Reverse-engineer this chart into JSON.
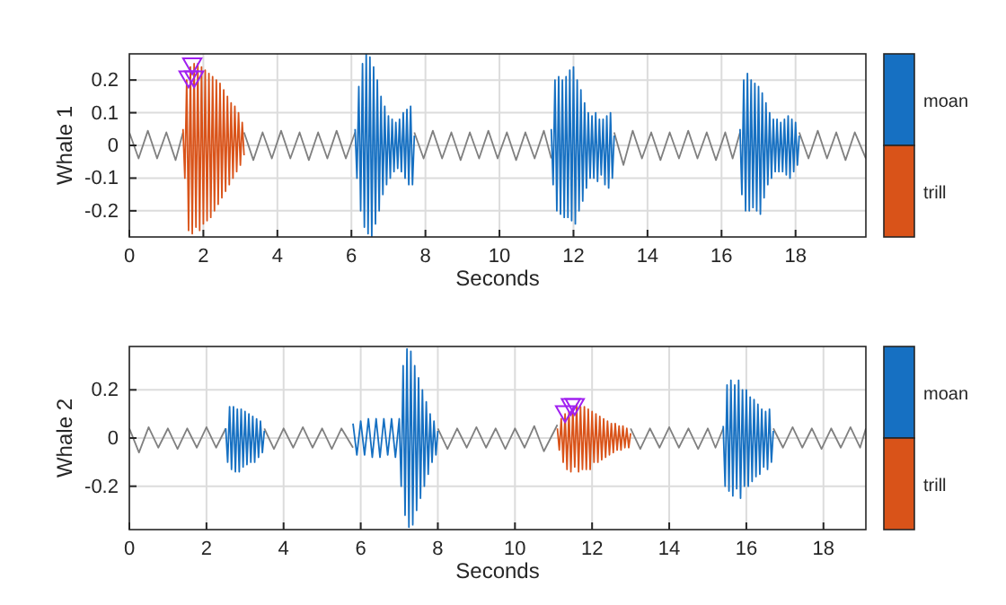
{
  "chart_data": [
    {
      "type": "line",
      "xlabel": "Seconds",
      "ylabel": "Whale 1",
      "xlim": [
        0,
        19.9
      ],
      "ylim": [
        -0.28,
        0.28
      ],
      "xticks": [
        0,
        2,
        4,
        6,
        8,
        10,
        12,
        14,
        16,
        18
      ],
      "yticks": [
        -0.2,
        -0.1,
        0,
        0.1,
        0.2
      ],
      "grid": true,
      "legend": "right",
      "series": [
        {
          "color": "#808080",
          "x": [
            0,
            0.25,
            0.5,
            0.75,
            1,
            1.25,
            1.45,
            2.2,
            3.1,
            3.35,
            3.6,
            3.85,
            4.1,
            4.35,
            4.6,
            4.85,
            5.1,
            5.35,
            5.6,
            5.85,
            6.1,
            7,
            7.7,
            7.95,
            8.2,
            8.45,
            8.7,
            8.95,
            9.2,
            9.45,
            9.7,
            9.95,
            10.2,
            10.45,
            10.7,
            10.95,
            11.2,
            11.4,
            12,
            13.1,
            13.35,
            13.6,
            13.85,
            14.1,
            14.35,
            14.6,
            14.85,
            15.1,
            15.35,
            15.6,
            15.85,
            16.1,
            16.3,
            16.5,
            17,
            18.1,
            18.35,
            18.6,
            18.85,
            19.1,
            19.35,
            19.6,
            19.9
          ],
          "values": [
            0.04,
            -0.04,
            0.045,
            -0.04,
            0.04,
            -0.045,
            0.04,
            null,
            0.04,
            -0.045,
            0.04,
            -0.04,
            0.045,
            -0.04,
            0.04,
            -0.045,
            0.04,
            -0.04,
            0.045,
            -0.04,
            0.04,
            null,
            0.04,
            -0.04,
            0.045,
            -0.04,
            0.04,
            -0.045,
            0.04,
            -0.04,
            0.045,
            -0.04,
            0.04,
            -0.045,
            0.04,
            -0.04,
            0.045,
            -0.04,
            null,
            0.04,
            -0.06,
            0.045,
            -0.04,
            0.04,
            -0.045,
            0.04,
            -0.04,
            0.045,
            -0.04,
            0.04,
            -0.045,
            0.04,
            -0.04,
            0.04,
            null,
            0.04,
            -0.04,
            0.045,
            -0.04,
            0.04,
            -0.045,
            0.04,
            -0.04
          ]
        },
        {
          "name": "moan",
          "color": "#1670c2",
          "x": [
            6.1,
            6.15,
            6.2,
            6.25,
            6.3,
            6.35,
            6.4,
            6.45,
            6.5,
            6.55,
            6.6,
            6.65,
            6.7,
            6.75,
            6.8,
            6.85,
            6.9,
            6.95,
            7.0,
            7.05,
            7.1,
            7.15,
            7.2,
            7.25,
            7.3,
            7.35,
            7.4,
            7.45,
            7.5,
            7.55,
            7.6,
            7.65,
            7.7,
            9,
            11.4,
            11.45,
            11.5,
            11.55,
            11.6,
            11.65,
            11.7,
            11.75,
            11.8,
            11.85,
            11.9,
            11.95,
            12.0,
            12.05,
            12.1,
            12.15,
            12.2,
            12.25,
            12.3,
            12.35,
            12.4,
            12.45,
            12.5,
            12.55,
            12.6,
            12.65,
            12.7,
            12.75,
            12.8,
            12.85,
            12.9,
            12.95,
            13.0,
            13.05,
            13.1,
            15,
            16.5,
            16.55,
            16.6,
            16.65,
            16.7,
            16.75,
            16.8,
            16.85,
            16.9,
            16.95,
            17.0,
            17.05,
            17.1,
            17.15,
            17.2,
            17.25,
            17.3,
            17.35,
            17.4,
            17.45,
            17.5,
            17.55,
            17.6,
            17.65,
            17.7,
            17.75,
            17.8,
            17.85,
            17.9,
            17.95,
            18.0,
            18.05,
            18.1
          ],
          "values": [
            0.05,
            -0.1,
            0.18,
            -0.2,
            0.25,
            -0.25,
            0.28,
            -0.27,
            0.27,
            -0.28,
            0.24,
            -0.24,
            0.2,
            -0.2,
            0.15,
            -0.15,
            0.12,
            -0.12,
            0.09,
            -0.1,
            0.08,
            -0.08,
            0.07,
            -0.07,
            0.08,
            -0.08,
            0.1,
            -0.1,
            0.11,
            -0.12,
            0.12,
            -0.12,
            0.03,
            null,
            0.05,
            -0.12,
            0.2,
            -0.2,
            0.21,
            -0.21,
            0.2,
            -0.22,
            0.21,
            -0.22,
            0.23,
            -0.23,
            0.24,
            -0.24,
            0.2,
            -0.2,
            0.17,
            -0.17,
            0.13,
            -0.13,
            0.1,
            -0.1,
            0.09,
            -0.1,
            0.1,
            -0.11,
            0.08,
            -0.09,
            0.08,
            -0.12,
            0.09,
            -0.13,
            0.1,
            -0.1,
            0.03,
            null,
            0.05,
            -0.15,
            0.2,
            -0.2,
            0.22,
            -0.2,
            0.2,
            -0.19,
            0.19,
            -0.2,
            0.18,
            -0.21,
            0.16,
            -0.16,
            0.13,
            -0.12,
            0.1,
            -0.1,
            0.08,
            -0.08,
            0.08,
            -0.08,
            0.07,
            -0.08,
            0.08,
            -0.09,
            0.09,
            -0.1,
            0.08,
            -0.08,
            0.07,
            -0.06,
            0.03
          ]
        },
        {
          "name": "trill",
          "color": "#d95319",
          "x": [
            1.45,
            1.5,
            1.55,
            1.6,
            1.65,
            1.7,
            1.75,
            1.8,
            1.85,
            1.9,
            1.95,
            2.0,
            2.05,
            2.1,
            2.15,
            2.2,
            2.25,
            2.3,
            2.35,
            2.4,
            2.45,
            2.5,
            2.55,
            2.6,
            2.65,
            2.7,
            2.75,
            2.8,
            2.85,
            2.9,
            2.95,
            3.0,
            3.05,
            3.1
          ],
          "values": [
            0.05,
            -0.1,
            0.2,
            -0.26,
            0.24,
            -0.27,
            0.25,
            -0.25,
            0.25,
            -0.26,
            0.24,
            -0.24,
            0.23,
            -0.23,
            0.22,
            -0.22,
            0.21,
            -0.2,
            0.2,
            -0.18,
            0.19,
            -0.16,
            0.17,
            -0.14,
            0.15,
            -0.12,
            0.13,
            -0.1,
            0.12,
            -0.08,
            0.1,
            -0.06,
            0.07,
            -0.03
          ]
        },
        {
          "type": "scatter",
          "marker": "triangle",
          "color": "#a020f0",
          "x": [
            1.6,
            1.7,
            1.75
          ],
          "values": [
            0.21,
            0.25,
            0.21
          ]
        }
      ]
    },
    {
      "type": "line",
      "xlabel": "Seconds",
      "ylabel": "Whale 2",
      "xlim": [
        0,
        19.1
      ],
      "ylim": [
        -0.38,
        0.38
      ],
      "xticks": [
        0,
        2,
        4,
        6,
        8,
        10,
        12,
        14,
        16,
        18
      ],
      "yticks": [
        -0.2,
        0,
        0.2
      ],
      "grid": true,
      "legend": "right",
      "series": [
        {
          "color": "#808080",
          "x": [
            0,
            0.25,
            0.5,
            0.75,
            1,
            1.25,
            1.5,
            1.75,
            2,
            2.25,
            2.5,
            3,
            3.5,
            3.75,
            4,
            4.25,
            4.5,
            4.75,
            5,
            5.25,
            5.5,
            5.8,
            7,
            8,
            8.25,
            8.5,
            8.75,
            9,
            9.25,
            9.5,
            9.75,
            10,
            10.25,
            10.5,
            10.75,
            11.1,
            12,
            13,
            13.25,
            13.5,
            13.75,
            14,
            14.25,
            14.5,
            14.75,
            15,
            15.2,
            15.4,
            16,
            16.7,
            16.95,
            17.2,
            17.45,
            17.7,
            17.95,
            18.2,
            18.45,
            18.7,
            18.95,
            19.1
          ],
          "values": [
            0.04,
            -0.06,
            0.045,
            -0.04,
            0.04,
            -0.045,
            0.04,
            -0.04,
            0.045,
            -0.04,
            0.04,
            null,
            0.04,
            -0.045,
            0.04,
            -0.04,
            0.045,
            -0.04,
            0.04,
            -0.045,
            0.04,
            -0.04,
            null,
            0.04,
            -0.045,
            0.04,
            -0.04,
            0.045,
            -0.04,
            0.04,
            -0.045,
            0.04,
            -0.04,
            0.05,
            -0.055,
            0.055,
            null,
            0.04,
            -0.045,
            0.04,
            -0.04,
            0.045,
            -0.04,
            0.04,
            -0.045,
            0.04,
            -0.04,
            0.04,
            null,
            0.04,
            -0.04,
            0.045,
            -0.04,
            0.04,
            -0.045,
            0.04,
            -0.04,
            0.045,
            -0.04,
            0.04
          ]
        },
        {
          "name": "moan",
          "color": "#1670c2",
          "x": [
            2.5,
            2.55,
            2.6,
            2.65,
            2.7,
            2.75,
            2.8,
            2.85,
            2.9,
            2.95,
            3.0,
            3.05,
            3.1,
            3.15,
            3.2,
            3.25,
            3.3,
            3.35,
            3.4,
            3.45,
            3.5,
            4.5,
            5.8,
            5.9,
            6.0,
            6.1,
            6.2,
            6.3,
            6.4,
            6.5,
            6.6,
            6.7,
            6.8,
            6.9,
            7.0,
            7.05,
            7.1,
            7.15,
            7.2,
            7.25,
            7.3,
            7.35,
            7.4,
            7.45,
            7.5,
            7.55,
            7.6,
            7.65,
            7.7,
            7.75,
            7.8,
            7.85,
            7.9,
            7.95,
            8.0,
            12,
            15.4,
            15.45,
            15.5,
            15.55,
            15.6,
            15.65,
            15.7,
            15.75,
            15.8,
            15.85,
            15.9,
            15.95,
            16.0,
            16.05,
            16.1,
            16.15,
            16.2,
            16.25,
            16.3,
            16.35,
            16.4,
            16.45,
            16.5,
            16.55,
            16.6,
            16.65,
            16.7
          ],
          "values": [
            0.04,
            -0.1,
            0.13,
            -0.13,
            0.13,
            -0.14,
            0.12,
            -0.14,
            0.12,
            -0.12,
            0.11,
            -0.11,
            0.1,
            -0.1,
            0.09,
            -0.1,
            0.08,
            -0.08,
            0.07,
            -0.06,
            0.03,
            null,
            0.06,
            -0.07,
            0.07,
            -0.07,
            0.08,
            -0.08,
            0.08,
            -0.08,
            0.08,
            -0.07,
            0.08,
            -0.08,
            0.08,
            -0.2,
            0.3,
            -0.32,
            0.37,
            -0.37,
            0.36,
            -0.36,
            0.3,
            -0.3,
            0.25,
            -0.25,
            0.2,
            -0.2,
            0.15,
            -0.15,
            0.1,
            -0.1,
            0.07,
            -0.07,
            0.03,
            null,
            0.05,
            -0.2,
            0.22,
            -0.22,
            0.24,
            -0.24,
            0.22,
            -0.21,
            0.24,
            -0.25,
            0.2,
            -0.2,
            0.2,
            -0.2,
            0.17,
            -0.18,
            0.16,
            -0.16,
            0.14,
            -0.15,
            0.12,
            -0.12,
            0.11,
            -0.13,
            0.12,
            -0.1,
            0.03
          ]
        },
        {
          "name": "trill",
          "color": "#d95319",
          "x": [
            11.1,
            11.15,
            11.2,
            11.25,
            11.3,
            11.35,
            11.4,
            11.45,
            11.5,
            11.55,
            11.6,
            11.65,
            11.7,
            11.75,
            11.8,
            11.85,
            11.9,
            11.95,
            12.0,
            12.05,
            12.1,
            12.15,
            12.2,
            12.25,
            12.3,
            12.35,
            12.4,
            12.45,
            12.5,
            12.55,
            12.6,
            12.65,
            12.7,
            12.75,
            12.8,
            12.85,
            12.9,
            12.95,
            13.0
          ],
          "values": [
            0.04,
            -0.05,
            0.08,
            -0.1,
            0.1,
            -0.13,
            0.11,
            -0.14,
            0.12,
            -0.12,
            0.14,
            -0.14,
            0.13,
            -0.13,
            0.13,
            -0.13,
            0.12,
            -0.13,
            0.11,
            -0.1,
            0.1,
            -0.1,
            0.09,
            -0.09,
            0.08,
            -0.08,
            0.07,
            -0.07,
            0.06,
            -0.06,
            0.06,
            -0.05,
            0.05,
            -0.05,
            0.05,
            -0.04,
            0.04,
            -0.04,
            0.02
          ]
        },
        {
          "type": "scatter",
          "marker": "triangle",
          "color": "#a020f0",
          "x": [
            11.3,
            11.45,
            11.55
          ],
          "values": [
            0.11,
            0.14,
            0.14
          ]
        }
      ]
    }
  ]
}
